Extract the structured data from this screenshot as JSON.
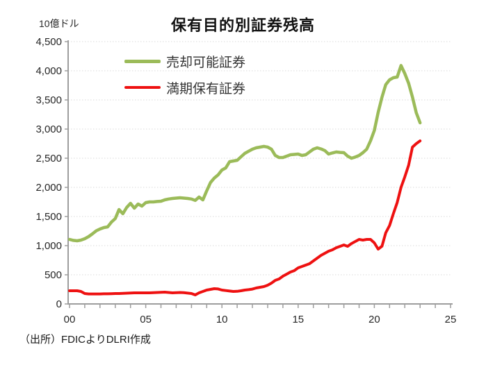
{
  "chart_data": {
    "type": "line",
    "title": "保有目的別証券残高",
    "ylabel": "10億ドル",
    "xlabel": "",
    "source_note": "（出所）FDICよりDLRI作成",
    "grid": "horizontal-dotted",
    "legend_position": "upper-left-inside",
    "xlim": [
      2000,
      2025
    ],
    "ylim": [
      0,
      4500
    ],
    "x_start": 2000,
    "x_step": 0.25,
    "x_axis": {
      "minor_tick_every_years": 1,
      "major_labels": [
        {
          "year": 2000,
          "label": "00"
        },
        {
          "year": 2005,
          "label": "05"
        },
        {
          "year": 2010,
          "label": "10"
        },
        {
          "year": 2015,
          "label": "15"
        },
        {
          "year": 2020,
          "label": "20"
        },
        {
          "year": 2025,
          "label": "25"
        }
      ]
    },
    "y_axis": {
      "min": 0,
      "max": 4500,
      "tick_step": 500,
      "tick_labels": [
        "0",
        "500",
        "1,000",
        "1,500",
        "2,000",
        "2,500",
        "3,000",
        "3,500",
        "4,000",
        "4,500"
      ]
    },
    "series": [
      {
        "name": "売却可能証券",
        "color": "#9bbb59",
        "line_width": 4.5,
        "values": [
          1107,
          1090,
          1083,
          1095,
          1119,
          1155,
          1202,
          1255,
          1286,
          1310,
          1321,
          1405,
          1464,
          1619,
          1548,
          1655,
          1726,
          1643,
          1714,
          1679,
          1738,
          1750,
          1750,
          1757,
          1762,
          1786,
          1800,
          1810,
          1815,
          1821,
          1815,
          1810,
          1800,
          1776,
          1833,
          1786,
          1940,
          2083,
          2160,
          2214,
          2298,
          2333,
          2440,
          2452,
          2464,
          2524,
          2583,
          2620,
          2655,
          2678,
          2690,
          2702,
          2690,
          2655,
          2548,
          2512,
          2512,
          2536,
          2560,
          2565,
          2571,
          2548,
          2560,
          2607,
          2655,
          2678,
          2660,
          2631,
          2571,
          2590,
          2607,
          2600,
          2595,
          2536,
          2500,
          2520,
          2548,
          2595,
          2655,
          2798,
          2976,
          3286,
          3548,
          3762,
          3845,
          3881,
          3893,
          4090,
          3952,
          3786,
          3550,
          3280,
          3107
        ]
      },
      {
        "name": "満期保有証券",
        "color": "#ee1111",
        "line_width": 4,
        "values": [
          226,
          226,
          226,
          214,
          179,
          171,
          171,
          171,
          171,
          174,
          174,
          176,
          179,
          179,
          181,
          185,
          188,
          190,
          190,
          190,
          190,
          190,
          193,
          196,
          200,
          202,
          196,
          190,
          193,
          196,
          193,
          186,
          179,
          155,
          190,
          214,
          238,
          250,
          262,
          257,
          238,
          230,
          222,
          214,
          217,
          226,
          238,
          245,
          255,
          274,
          286,
          298,
          321,
          357,
          405,
          429,
          476,
          512,
          548,
          571,
          619,
          643,
          667,
          690,
          738,
          786,
          833,
          869,
          905,
          929,
          964,
          988,
          1012,
          988,
          1036,
          1071,
          1107,
          1095,
          1107,
          1107,
          1048,
          940,
          990,
          1220,
          1345,
          1550,
          1740,
          2000,
          2180,
          2380,
          2690,
          2750,
          2798
        ]
      }
    ]
  }
}
